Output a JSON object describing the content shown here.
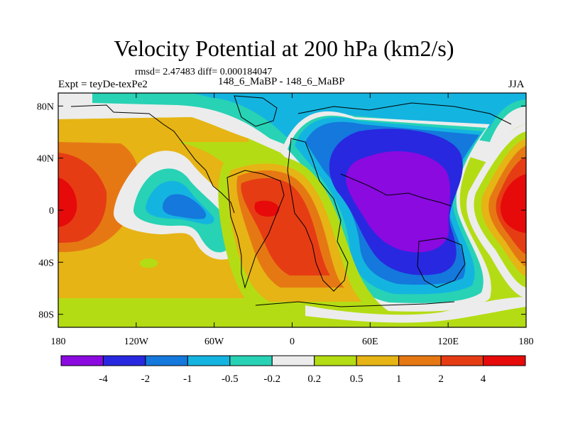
{
  "chart_data": {
    "type": "heatmap",
    "title": "Velocity Potential at 200 hPa (km2/s)",
    "stats": "rmsd= 2.47483  diff= 0.000184047",
    "left_label": "Expt = teyDe-texPe2",
    "center_label": "148_6_MaBP - 148_6_MaBP",
    "right_label": "JJA",
    "x_axis": {
      "range": [
        -180,
        180
      ],
      "ticks": [
        -180,
        -120,
        -60,
        0,
        60,
        120,
        180
      ],
      "tick_labels": [
        "180",
        "120W",
        "60W",
        "0",
        "60E",
        "120E",
        "180"
      ]
    },
    "y_axis": {
      "range": [
        -90,
        90
      ],
      "ticks": [
        80,
        40,
        0,
        -40,
        -80
      ],
      "tick_labels": [
        "80N",
        "40N",
        "0",
        "40S",
        "80S"
      ]
    },
    "colorbar": {
      "levels": [
        "-4",
        "-2",
        "-1",
        "-0.5",
        "-0.2",
        "0.2",
        "0.5",
        "1",
        "2",
        "4"
      ],
      "colors": [
        "#8a0ae0",
        "#2828e0",
        "#1478dc",
        "#14b4e0",
        "#28d2b4",
        "#ececec",
        "#b4dc14",
        "#e6b414",
        "#e67814",
        "#e63c14",
        "#e60a0a"
      ]
    },
    "features": [
      {
        "name": "negative-center",
        "lon": 85,
        "lat": 10,
        "peak_value": "< -4"
      },
      {
        "name": "positive-center-west-pacific",
        "lon": 175,
        "lat": 5,
        "peak_value": "> 4"
      },
      {
        "name": "positive-center-east-pacific",
        "lon": -180,
        "lat": 5,
        "peak_value": "> 2"
      },
      {
        "name": "positive-center-atlantic",
        "lon": -20,
        "lat": 0,
        "peak_value": "> 4"
      },
      {
        "name": "negative-pocket-central-america",
        "lon": -80,
        "lat": 5,
        "peak_value": "-1"
      }
    ]
  }
}
